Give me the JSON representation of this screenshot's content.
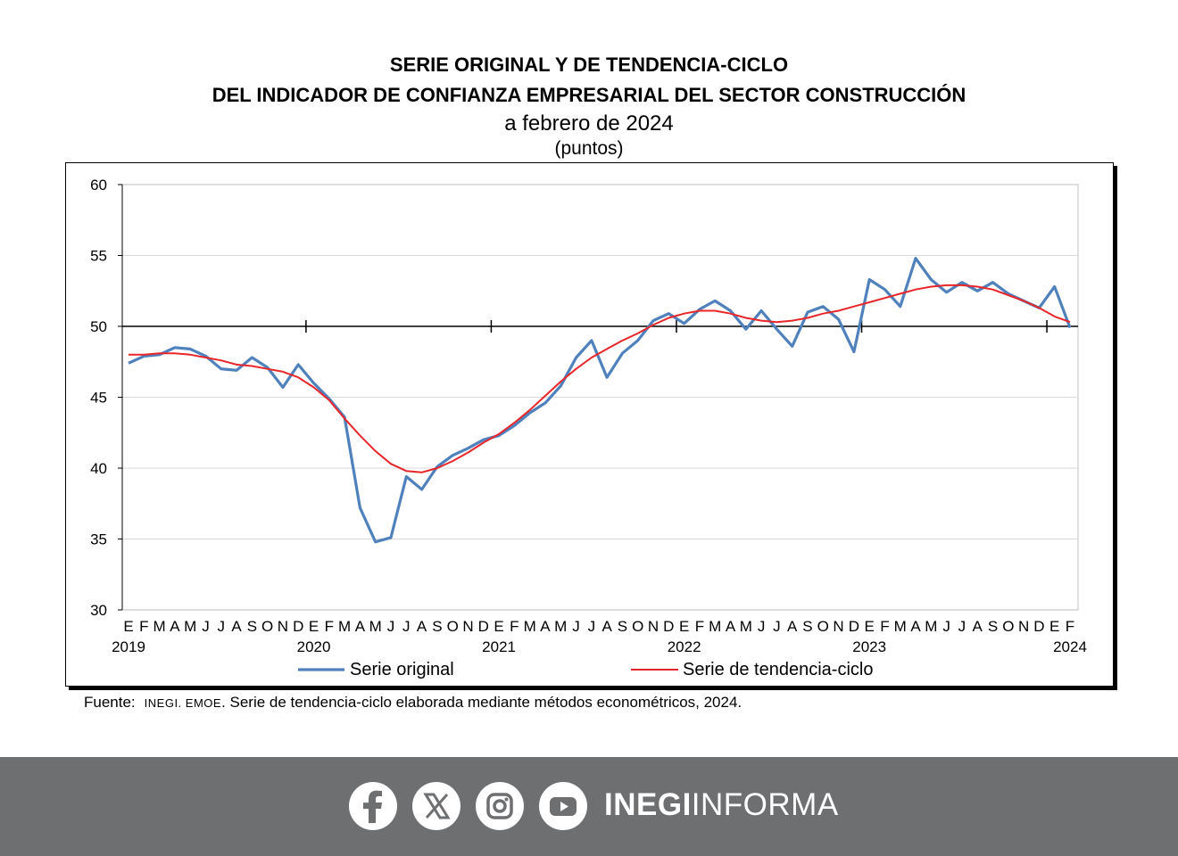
{
  "title_line1": "SERIE ORIGINAL Y DE TENDENCIA-CICLO",
  "title_line2": "DEL INDICADOR DE CONFIANZA EMPRESARIAL DEL SECTOR CONSTRUCCIÓN",
  "subtitle": "a febrero de 2024",
  "units": "(puntos)",
  "source": {
    "label": "Fuente:",
    "org": "INEGI. EMOE",
    "text": ". Serie de tendencia-ciclo elaborada mediante métodos econométricos, 2024."
  },
  "footer": {
    "brand_bold": "INEGI",
    "brand_light": "INFORMA",
    "icons": [
      "facebook-icon",
      "x-icon",
      "instagram-icon",
      "youtube-icon"
    ],
    "background": "#6e6f71"
  },
  "chart_data": {
    "type": "line",
    "ylim": [
      30,
      60
    ],
    "yticks": [
      30,
      35,
      40,
      45,
      50,
      55,
      60
    ],
    "reference_line": 50,
    "grid": true,
    "legend_position": "bottom",
    "month_labels": [
      "E",
      "F",
      "M",
      "A",
      "M",
      "J",
      "J",
      "A",
      "S",
      "O",
      "N",
      "D",
      "E",
      "F",
      "M",
      "A",
      "M",
      "J",
      "J",
      "A",
      "S",
      "O",
      "N",
      "D",
      "E",
      "F",
      "M",
      "A",
      "M",
      "J",
      "J",
      "A",
      "S",
      "O",
      "N",
      "D",
      "E",
      "F",
      "M",
      "A",
      "M",
      "J",
      "J",
      "A",
      "S",
      "O",
      "N",
      "D",
      "E",
      "F",
      "M",
      "A",
      "M",
      "J",
      "J",
      "A",
      "S",
      "O",
      "N",
      "D",
      "E",
      "F"
    ],
    "year_labels": [
      {
        "index": 0,
        "label": "2019"
      },
      {
        "index": 12,
        "label": "2020"
      },
      {
        "index": 24,
        "label": "2021"
      },
      {
        "index": 36,
        "label": "2022"
      },
      {
        "index": 48,
        "label": "2023"
      },
      {
        "index": 61,
        "label": "2024"
      }
    ],
    "series": [
      {
        "name": "Serie original",
        "color": "#4f81bd",
        "values": [
          47.4,
          47.9,
          48.0,
          48.5,
          48.4,
          47.9,
          47.0,
          46.9,
          47.8,
          47.1,
          45.7,
          47.3,
          46.0,
          44.9,
          43.6,
          37.2,
          34.8,
          35.1,
          39.4,
          38.5,
          40.1,
          40.9,
          41.4,
          42.0,
          42.3,
          43.0,
          43.9,
          44.6,
          45.8,
          47.8,
          49.0,
          46.4,
          48.1,
          49.0,
          50.4,
          50.9,
          50.2,
          51.2,
          51.8,
          51.1,
          49.8,
          51.1,
          49.8,
          48.6,
          51.0,
          51.4,
          50.5,
          48.2,
          53.3,
          52.6,
          51.4,
          54.8,
          53.3,
          52.4,
          53.1,
          52.5,
          53.1,
          52.3,
          51.8,
          51.3,
          52.8,
          49.9
        ]
      },
      {
        "name": "Serie de tendencia-ciclo",
        "color": "#e8262a",
        "values": [
          48.0,
          48.0,
          48.1,
          48.1,
          48.0,
          47.8,
          47.6,
          47.3,
          47.2,
          47.0,
          46.8,
          46.4,
          45.7,
          44.8,
          43.5,
          42.3,
          41.2,
          40.3,
          39.8,
          39.7,
          40.0,
          40.5,
          41.1,
          41.8,
          42.4,
          43.2,
          44.1,
          45.1,
          46.1,
          47.0,
          47.8,
          48.4,
          49.0,
          49.5,
          50.1,
          50.6,
          50.9,
          51.1,
          51.1,
          50.9,
          50.6,
          50.4,
          50.3,
          50.4,
          50.6,
          50.9,
          51.1,
          51.4,
          51.7,
          52.0,
          52.3,
          52.6,
          52.8,
          52.9,
          52.9,
          52.8,
          52.6,
          52.2,
          51.8,
          51.3,
          50.7,
          50.3
        ]
      }
    ]
  }
}
